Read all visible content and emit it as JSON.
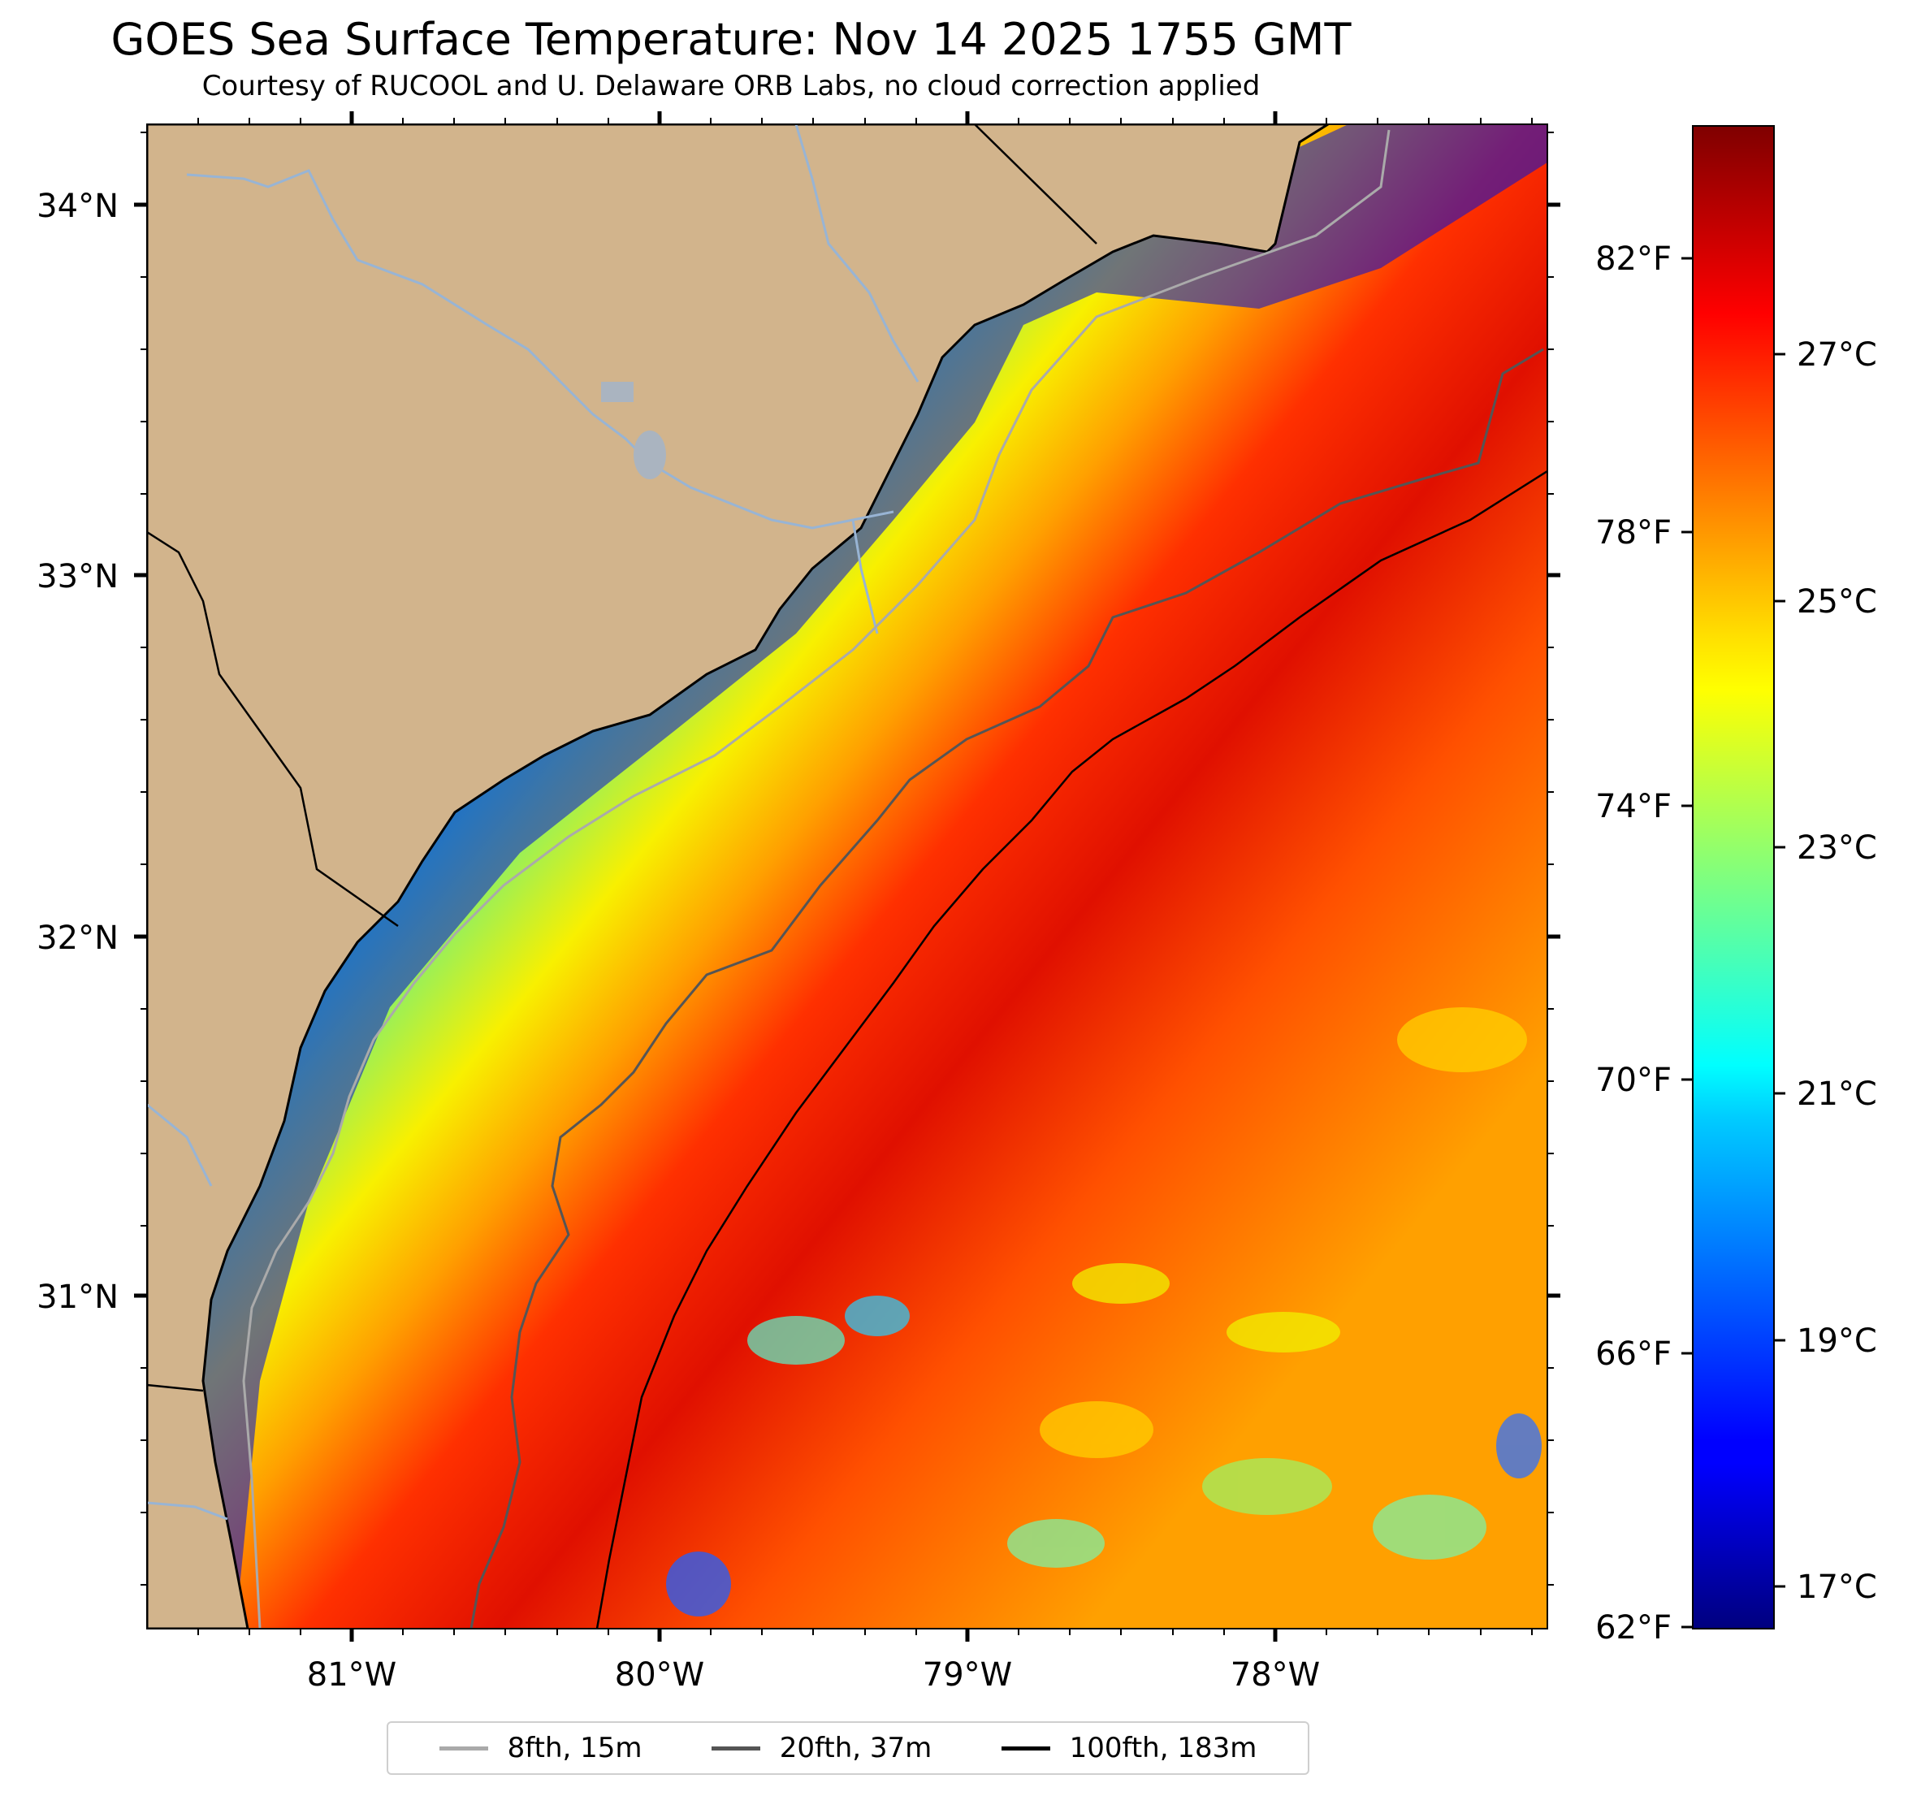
{
  "title": "GOES Sea Surface Temperature: Nov 14 2025 1755 GMT",
  "subtitle": "Courtesy of RUCOOL and U. Delaware ORB Labs, no cloud correction applied",
  "axes": {
    "lat_labels": [
      "34°N",
      "33°N",
      "32°N",
      "31°N"
    ],
    "lon_labels": [
      "81°W",
      "80°W",
      "79°W",
      "78°W"
    ]
  },
  "colorbar": {
    "fahrenheit_labels": [
      "82°F",
      "78°F",
      "74°F",
      "70°F",
      "66°F",
      "62°F"
    ],
    "celsius_labels": [
      "27°C",
      "25°C",
      "23°C",
      "21°C",
      "19°C",
      "17°C"
    ],
    "colormap": "jet"
  },
  "legend": {
    "items": [
      {
        "label": "8fth, 15m",
        "color": "#aaaaaa"
      },
      {
        "label": "20fth, 37m",
        "color": "#555555"
      },
      {
        "label": "100fth, 183m",
        "color": "#000000"
      }
    ]
  },
  "colors": {
    "land": "#d2b48c",
    "rivers": "#98b4d4"
  }
}
